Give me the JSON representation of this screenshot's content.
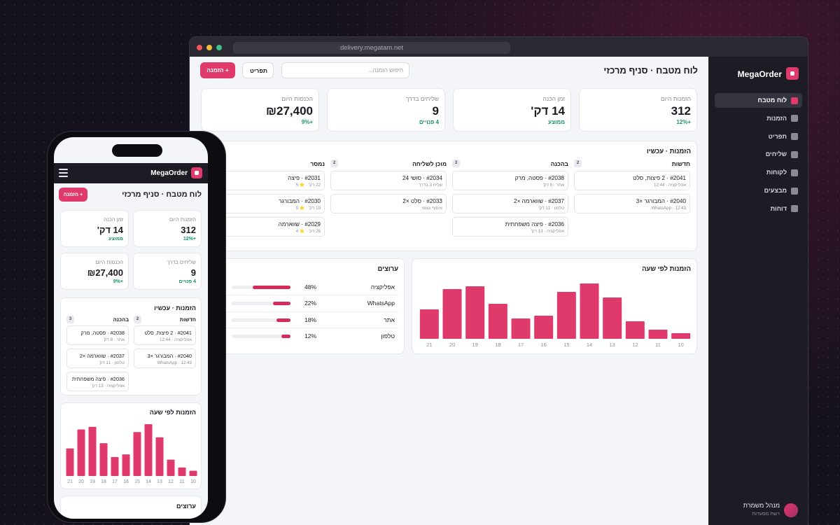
{
  "browser": {
    "url": "delivery.megatam.net"
  },
  "sidebar": {
    "brand": "MegaOrder",
    "nav": [
      "לוח מטבח",
      "הזמנות",
      "תפריט",
      "שליחים",
      "לקוחות",
      "מבצעים",
      "דוחות"
    ],
    "user": {
      "name": "מנהל משמרת",
      "role": "רשת מסעדות"
    }
  },
  "header": {
    "title": "לוח מטבח · סניף מרכזי",
    "search_placeholder": "חיפוש הזמנה...",
    "menu_button": "תפריט",
    "new_order_button": "+ הזמנה"
  },
  "kpis": [
    {
      "label": "הזמנות היום",
      "value": "312",
      "note": "+12%"
    },
    {
      "label": "זמן הכנה",
      "value": "14 דק'",
      "note": "ממוצע"
    },
    {
      "label": "שליחים בדרך",
      "value": "9",
      "note": "4 פנויים"
    },
    {
      "label": "הכנסות היום",
      "value": "₪27,400",
      "note": "+9%"
    }
  ],
  "orders": {
    "title": "הזמנות · עכשיו",
    "columns": [
      {
        "name": "חדשות",
        "count": "2",
        "items": [
          {
            "title": "#2041 · 2 פיצות, סלט",
            "meta": "אפליקציה · 12:44"
          },
          {
            "title": "#2040 · המבורגר ×3",
            "meta": "WhatsApp · 12:43"
          }
        ]
      },
      {
        "name": "בהכנה",
        "count": "3",
        "items": [
          {
            "title": "#2038 · פסטה, מרק",
            "meta": "אתר · 8 דק'"
          },
          {
            "title": "#2037 · שווארמה ×2",
            "meta": "טלפון · 11 דק'"
          },
          {
            "title": "#2036 · פיצה משפחתית",
            "meta": "אפליקציה · 13 דק'"
          }
        ]
      },
      {
        "name": "מוכן לשליחה",
        "count": "2",
        "items": [
          {
            "title": "#2034 · סושי 24",
            "meta": "שליח 3 בדרך"
          },
          {
            "title": "#2033 · סלט ×2",
            "meta": "איסוף עצמי"
          }
        ]
      },
      {
        "name": "נמסר",
        "items": [
          {
            "title": "#2031 · פיצה",
            "meta": "22 דק' · ⭐ 5"
          },
          {
            "title": "#2030 · המבורגר",
            "meta": "19 דק' · ⭐ 5"
          },
          {
            "title": "#2029 · שווארמה",
            "meta": "26 דק' · ⭐ 4"
          }
        ]
      }
    ]
  },
  "chart_data": [
    {
      "type": "bar",
      "title": "הזמנות לפי שעה",
      "color": "#e03a6c",
      "categories": [
        "10",
        "11",
        "12",
        "13",
        "14",
        "15",
        "16",
        "17",
        "18",
        "19",
        "20",
        "21"
      ],
      "values": [
        8,
        13,
        25,
        59,
        79,
        67,
        33,
        29,
        50,
        75,
        71,
        42
      ]
    },
    {
      "type": "hbar",
      "title": "ערוצים",
      "color": "#d42a5c",
      "categories": [
        "אפליקציה",
        "WhatsApp",
        "אתר",
        "טלפון"
      ],
      "values": [
        48,
        22,
        18,
        12
      ],
      "value_labels": [
        "48%",
        "22%",
        "18%",
        "12%"
      ]
    }
  ]
}
